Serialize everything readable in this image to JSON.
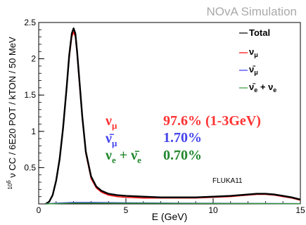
{
  "watermark": "NOvA Simulation",
  "chart_data": {
    "type": "line",
    "xlabel": "E (GeV)",
    "ylabel": "10^6 ν CC / 6E20 POT / kTON / 50 MeV",
    "xlim": [
      0,
      15
    ],
    "ylim": [
      0,
      2.5
    ],
    "x_ticks": [
      0,
      5,
      10,
      15
    ],
    "y_ticks": [
      0.5,
      1,
      1.5,
      2,
      2.5
    ],
    "legend_position": "top-right",
    "grid": false,
    "series": [
      {
        "name": "Total",
        "color": "#000000",
        "x": [
          0.4,
          0.6,
          0.8,
          1.0,
          1.2,
          1.4,
          1.6,
          1.75,
          1.9,
          2.0,
          2.1,
          2.2,
          2.35,
          2.5,
          2.7,
          3.0,
          3.3,
          3.6,
          4.0,
          4.5,
          5.0,
          6.0,
          7.0,
          8.0,
          9.0,
          10.0,
          11.0,
          11.5,
          12.0,
          12.5,
          13.0,
          13.5,
          14.0,
          14.5,
          15.0
        ],
        "values": [
          0.0,
          0.03,
          0.12,
          0.32,
          0.62,
          1.05,
          1.6,
          2.05,
          2.35,
          2.42,
          2.35,
          2.1,
          1.65,
          1.2,
          0.72,
          0.38,
          0.24,
          0.18,
          0.14,
          0.12,
          0.11,
          0.1,
          0.09,
          0.09,
          0.09,
          0.1,
          0.11,
          0.12,
          0.13,
          0.14,
          0.14,
          0.13,
          0.11,
          0.09,
          0.06
        ]
      },
      {
        "name": "ν_μ",
        "color": "#ff0000",
        "x": [
          0.4,
          0.6,
          0.8,
          1.0,
          1.2,
          1.4,
          1.6,
          1.75,
          1.9,
          2.0,
          2.1,
          2.2,
          2.35,
          2.5,
          2.7,
          3.0,
          3.3,
          3.6,
          4.0,
          4.5,
          5.0,
          6.0,
          7.0,
          8.0,
          9.0,
          10.0,
          11.0,
          11.5,
          12.0,
          12.5,
          13.0,
          13.5,
          14.0,
          14.5,
          15.0
        ],
        "values": [
          0.0,
          0.03,
          0.11,
          0.31,
          0.6,
          1.02,
          1.57,
          2.0,
          2.3,
          2.37,
          2.3,
          2.05,
          1.6,
          1.16,
          0.69,
          0.35,
          0.22,
          0.16,
          0.12,
          0.1,
          0.09,
          0.08,
          0.08,
          0.08,
          0.08,
          0.09,
          0.1,
          0.11,
          0.12,
          0.13,
          0.13,
          0.12,
          0.1,
          0.08,
          0.05
        ]
      },
      {
        "name": "ν̄_μ",
        "color": "#3333ff",
        "x": [
          0.4,
          1.0,
          2.0,
          3.0,
          5.0,
          8.0,
          11.0,
          13.0,
          15.0
        ],
        "values": [
          0.0,
          0.01,
          0.02,
          0.02,
          0.015,
          0.01,
          0.008,
          0.006,
          0.004
        ]
      },
      {
        "name": "ν̄_e + ν_e",
        "color": "#339933",
        "x": [
          0.4,
          1.0,
          2.0,
          3.0,
          5.0,
          8.0,
          11.0,
          13.0,
          15.0
        ],
        "values": [
          0.0,
          0.005,
          0.012,
          0.012,
          0.01,
          0.008,
          0.006,
          0.005,
          0.003
        ]
      }
    ],
    "annotations": [
      {
        "text": "ν_μ",
        "value": "97.6% (1-3GeV)",
        "color": "#ff3333"
      },
      {
        "text": "ν̄_μ",
        "value": "1.70%",
        "color": "#4444ee"
      },
      {
        "text": "ν_e + ν̄_e",
        "value": "0.70%",
        "color": "#22882e"
      }
    ],
    "note": "FLUKA11"
  }
}
